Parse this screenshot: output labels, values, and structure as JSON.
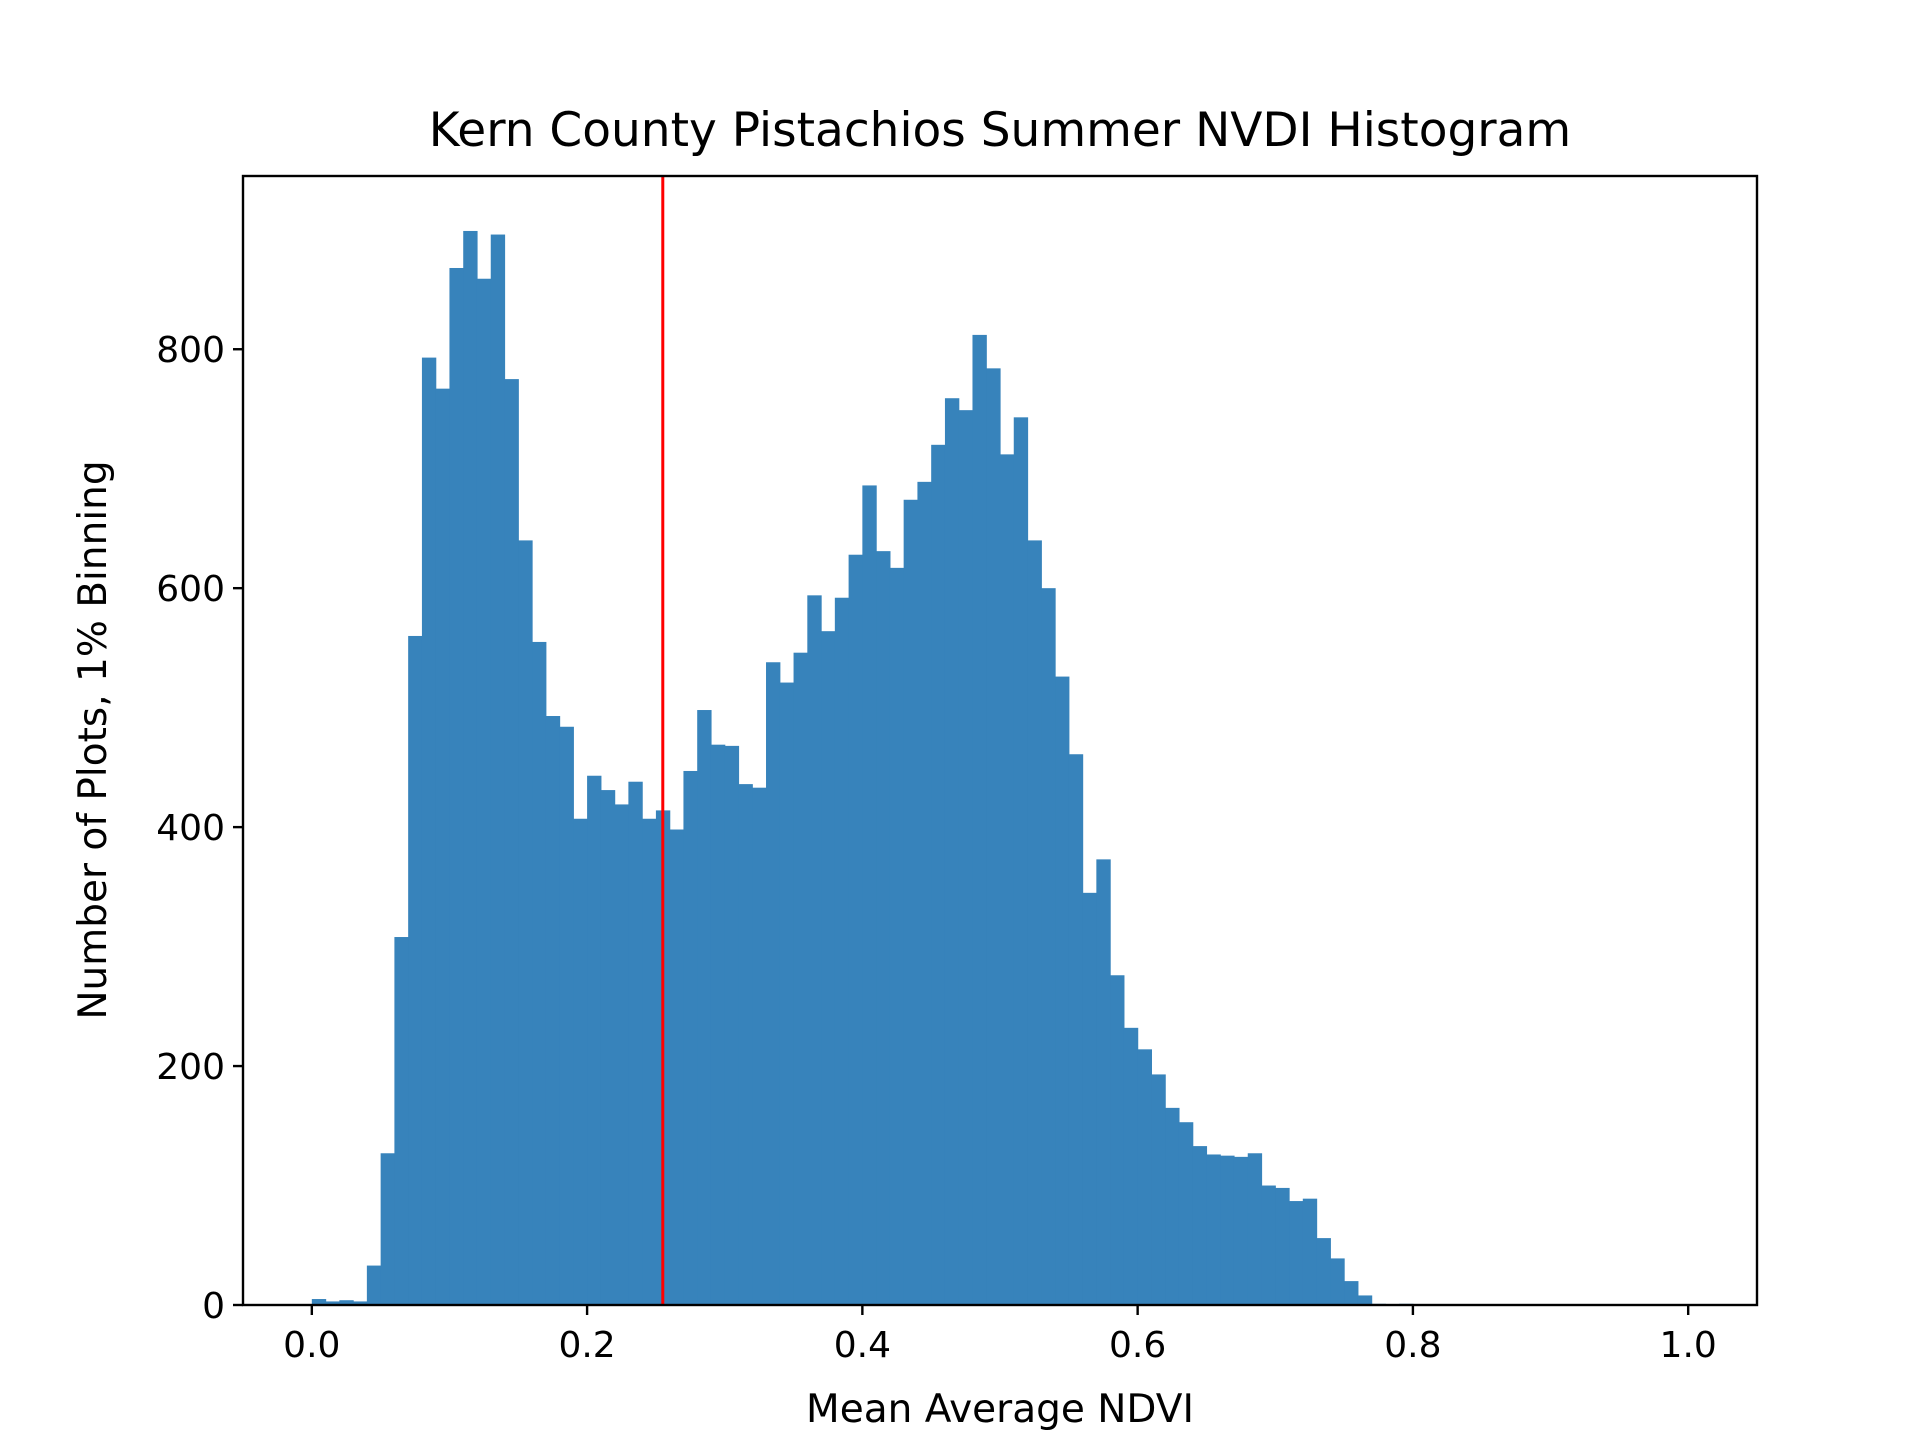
{
  "chart_data": {
    "type": "bar",
    "title": "Kern County Pistachios Summer NVDI Histogram",
    "xlabel": "Mean Average NDVI",
    "ylabel": "Number of Plots, 1% Binning",
    "xlim": [
      -0.05,
      1.05
    ],
    "ylim": [
      0,
      945
    ],
    "xticks": [
      0.0,
      0.2,
      0.4,
      0.6,
      0.8,
      1.0
    ],
    "xtick_labels": [
      "0.0",
      "0.2",
      "0.4",
      "0.6",
      "0.8",
      "1.0"
    ],
    "yticks": [
      0,
      200,
      400,
      600,
      800
    ],
    "ytick_labels": [
      "0",
      "200",
      "400",
      "600",
      "800"
    ],
    "bin_width": 0.01,
    "bin_start": 0.0,
    "bin_counts": [
      5,
      3,
      4,
      3,
      33,
      127,
      308,
      560,
      793,
      767,
      868,
      899,
      859,
      896,
      775,
      640,
      555,
      493,
      484,
      407,
      443,
      431,
      419,
      438,
      407,
      414,
      398,
      447,
      498,
      469,
      468,
      436,
      433,
      538,
      521,
      546,
      594,
      564,
      592,
      628,
      686,
      631,
      617,
      674,
      689,
      720,
      759,
      749,
      812,
      784,
      712,
      743,
      640,
      600,
      526,
      461,
      345,
      373,
      276,
      232,
      214,
      193,
      165,
      153,
      133,
      126,
      125,
      124,
      127,
      100,
      98,
      87,
      89,
      56,
      39,
      20,
      8,
      1,
      0,
      1,
      0,
      0,
      0,
      0,
      0,
      0,
      0,
      0,
      0,
      0,
      0,
      0,
      0,
      0,
      0,
      0,
      0,
      0,
      0,
      0
    ],
    "bar_color": "#3783bb",
    "vline": {
      "x": 0.255,
      "color": "#ff0000"
    },
    "grid": false,
    "legend": "none"
  }
}
